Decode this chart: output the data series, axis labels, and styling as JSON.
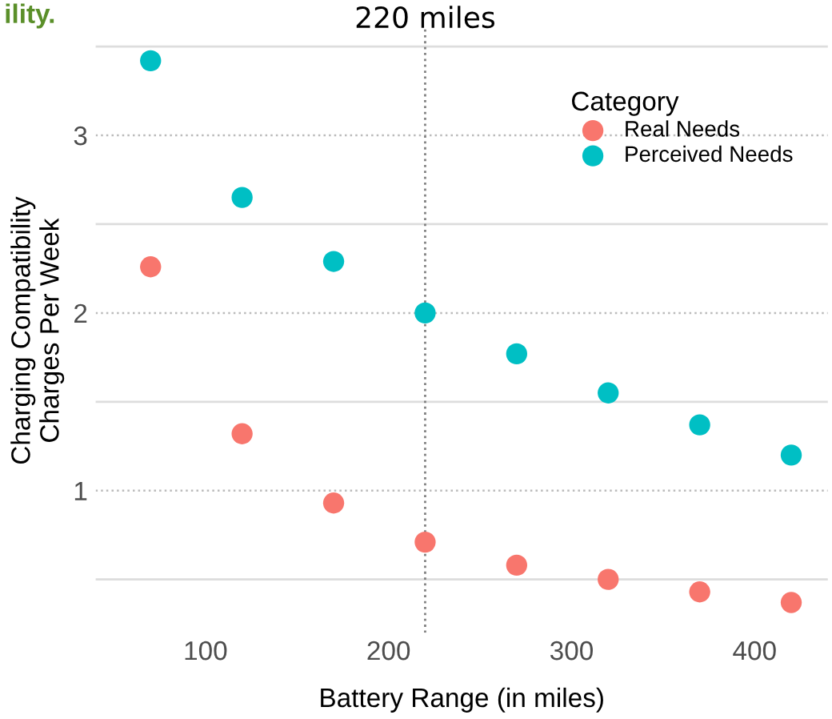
{
  "chart_data": {
    "type": "scatter",
    "title": "ility.",
    "xlabel": "Battery Range (in miles)",
    "ylabel": "Charging Compatibility\nCharges Per Week",
    "legend_title": "Category",
    "x": [
      70,
      120,
      170,
      220,
      270,
      320,
      370,
      420
    ],
    "series": [
      {
        "name": "Real Needs",
        "color": "#f8766d",
        "values": [
          2.26,
          1.32,
          0.93,
          0.71,
          0.58,
          0.5,
          0.43,
          0.37
        ]
      },
      {
        "name": "Perceived Needs",
        "color": "#00bfc4",
        "values": [
          3.42,
          2.65,
          2.29,
          2.0,
          1.77,
          1.55,
          1.37,
          1.2
        ]
      }
    ],
    "xlim": [
      40,
      440
    ],
    "ylim": [
      0.2,
      3.6
    ],
    "xticks": [
      100,
      200,
      300,
      400
    ],
    "yticks": [
      1,
      2,
      3
    ],
    "ref_lines": [
      {
        "axis": "x",
        "value": 220,
        "label": "220 miles",
        "line_style": "dotted",
        "color": "#808080"
      }
    ],
    "grid": "y",
    "legend": "top right",
    "marker": "circle"
  }
}
